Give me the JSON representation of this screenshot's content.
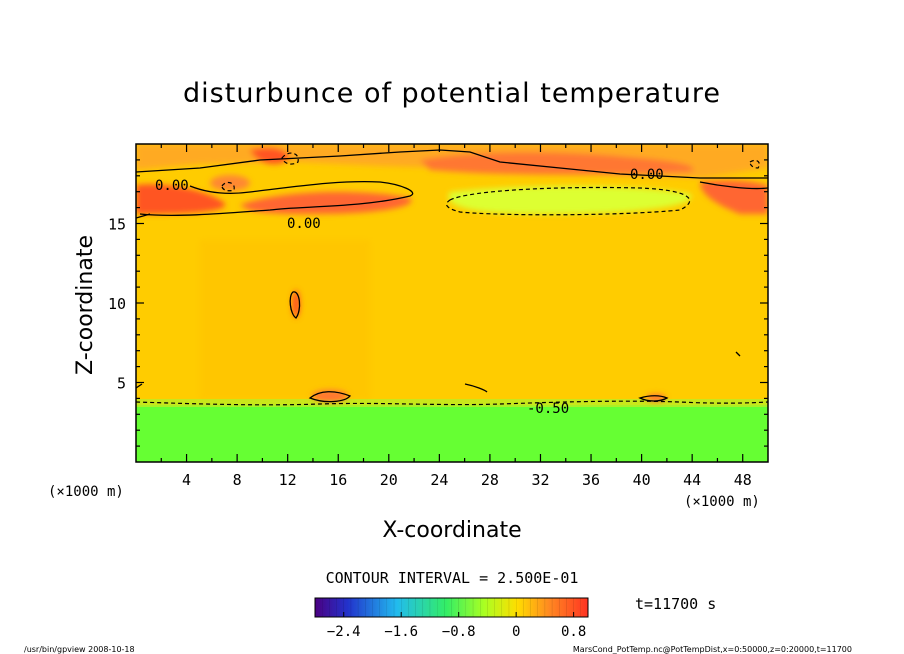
{
  "chart_data": {
    "type": "heatmap",
    "title": "disturbunce of potential temperature",
    "xlabel": "X-coordinate",
    "ylabel": "Z-coordinate",
    "x_unit_left": "(×1000 m)",
    "x_unit_right": "(×1000 m)",
    "xlim": [
      0,
      50
    ],
    "ylim": [
      0,
      20
    ],
    "x_ticks": [
      4,
      8,
      12,
      16,
      20,
      24,
      28,
      32,
      36,
      40,
      44,
      48
    ],
    "y_ticks": [
      5,
      10,
      15
    ],
    "contour_labels": [
      "0.00",
      "0.00",
      "0.00",
      "-0.50"
    ],
    "contour_interval": "CONTOUR INTERVAL = 2.500E-01",
    "time_label": "t=11700 s",
    "colorbar": {
      "range": [
        -2.8,
        1.0
      ],
      "tick_values": [
        -2.4,
        -1.6,
        -0.8,
        0,
        0.8
      ],
      "tick_labels": [
        "−2.4",
        "−1.6",
        "−0.8",
        "0",
        "0.8"
      ]
    },
    "footer_left": "/usr/bin/gpview   2008-10-18",
    "footer_right": "MarsCond_PotTemp.nc@PotTempDist,x=0:50000,z=0:20000,t=11700"
  },
  "colors": {
    "near_zero": "#ffcc00",
    "low_negative": "#66ff33",
    "positive": "#ff5522"
  }
}
